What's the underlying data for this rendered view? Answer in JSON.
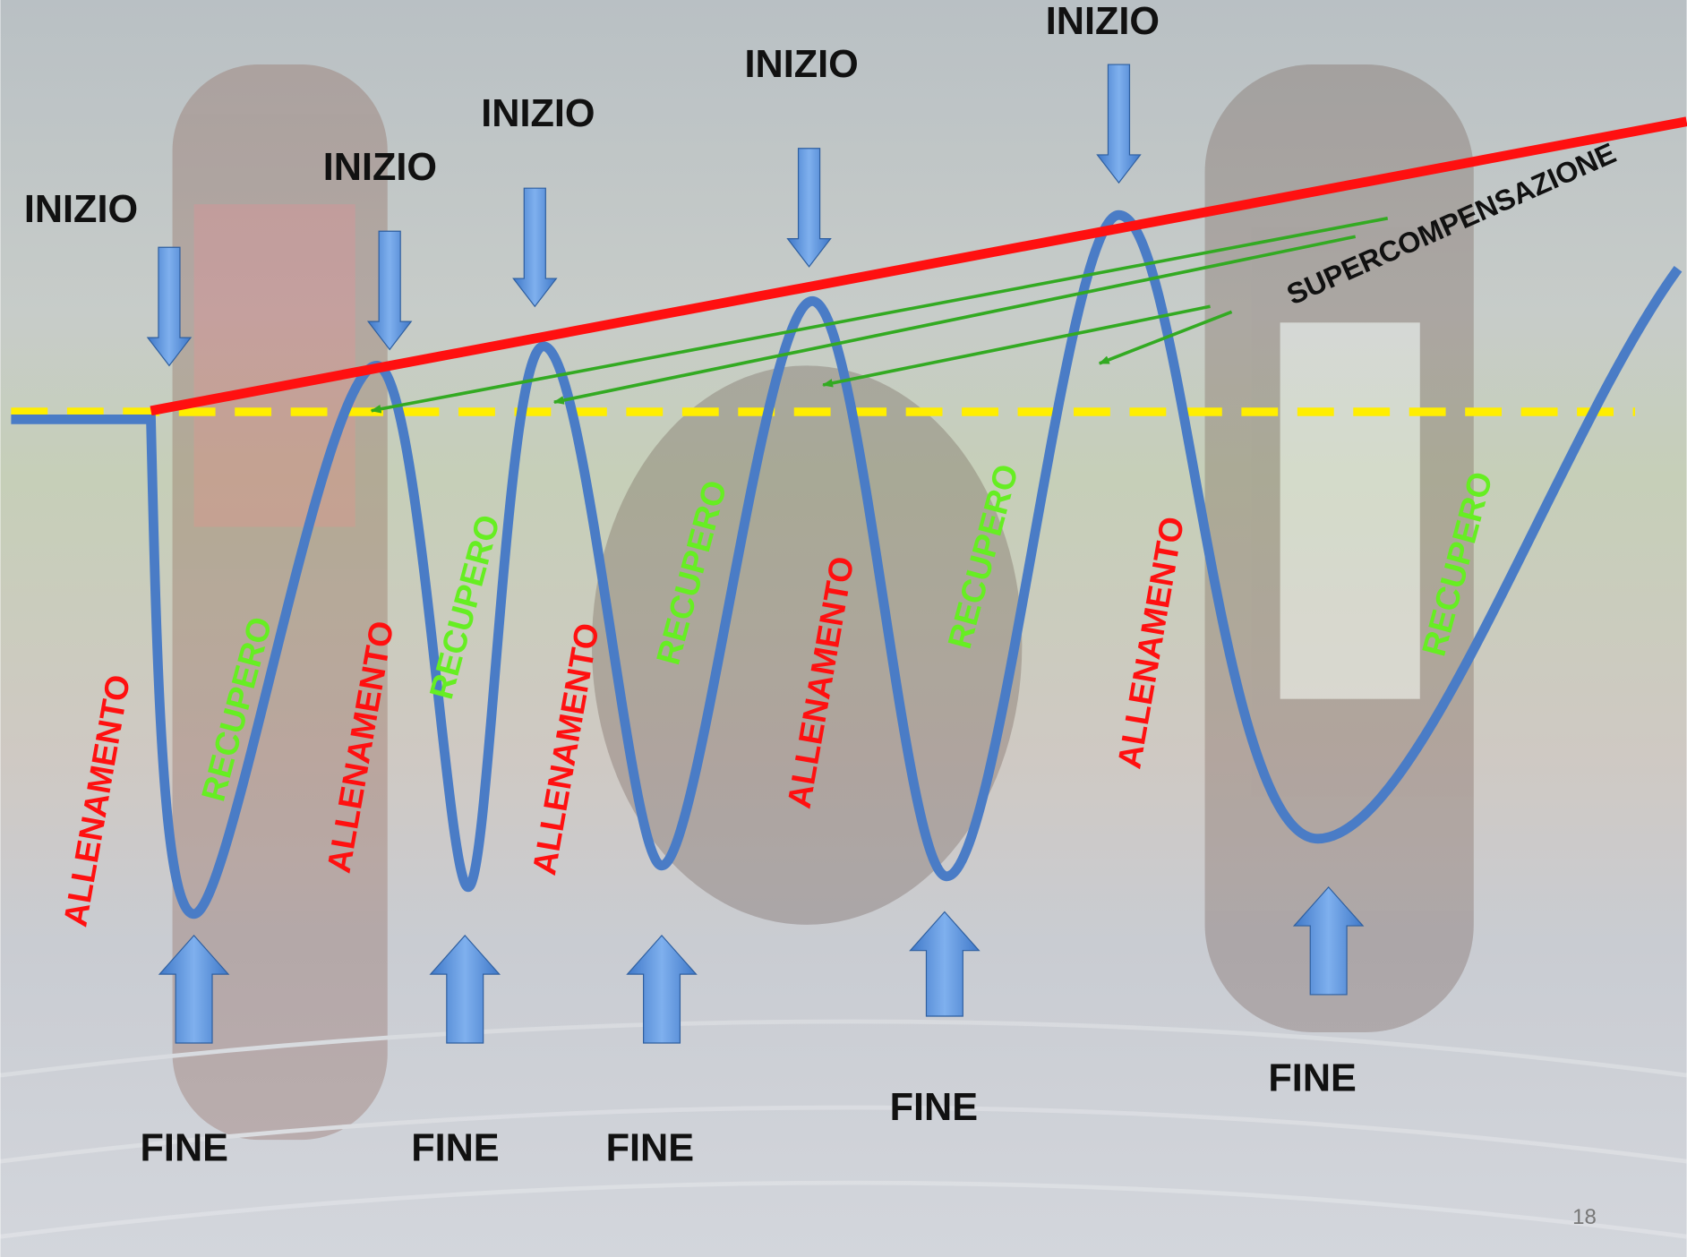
{
  "inizio_labels": [
    "INIZIO",
    "INIZIO",
    "INIZIO",
    "INIZIO",
    "INIZIO"
  ],
  "fine_labels": [
    "FINE",
    "FINE",
    "FINE",
    "FINE",
    "FINE"
  ],
  "allenamento_labels": [
    "ALLENAMENTO",
    "ALLENAMENTO",
    "ALLENAMENTO",
    "ALLENAMENTO",
    "ALLENAMENTO"
  ],
  "recupero_labels": [
    "RECUPERO",
    "RECUPERO",
    "RECUPERO",
    "RECUPERO",
    "RECUPERO"
  ],
  "supercompensazione": "SUPERCOMPENSAZIONE",
  "page_number": "18"
}
